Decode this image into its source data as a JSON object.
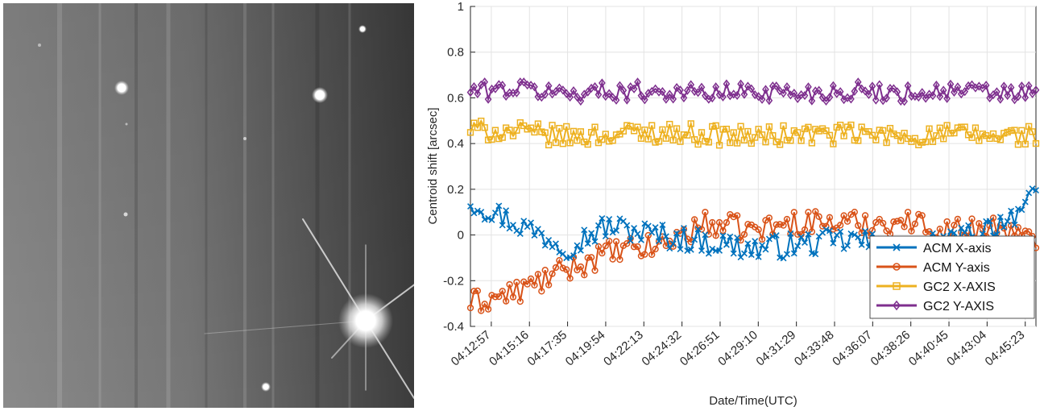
{
  "chart_data": {
    "type": "line",
    "xlabel": "Date/Time(UTC)",
    "ylabel": "Centroid shift [arcsec]",
    "ylim": [
      -0.4,
      1
    ],
    "yticks": [
      -0.4,
      -0.2,
      0,
      0.2,
      0.4,
      0.6,
      0.8,
      1
    ],
    "ytick_labels": [
      "-0.4",
      "-0.2",
      "0",
      "0.2",
      "0.4",
      "0.6",
      "0.8",
      "1"
    ],
    "xlim": [
      "04:11:41",
      "04:46:02"
    ],
    "x_tick_labels": [
      "04:12:57",
      "04:15:16",
      "04:17:35",
      "04:19:54",
      "04:22:13",
      "04:24:32",
      "04:26:51",
      "04:29:10",
      "04:31:29",
      "04:33:48",
      "04:36:07",
      "04:38:26",
      "04:40:45",
      "04:43:04",
      "04:45:23"
    ],
    "grid": true,
    "legend_position": "bottom-right",
    "colors": {
      "acm_x": "#0072BD",
      "acm_y": "#D95319",
      "gc2_x": "#EDB120",
      "gc2_y": "#7E2F8E"
    },
    "series": [
      {
        "name": "ACM X-axis",
        "marker": "x",
        "color": "#0072BD",
        "x": [
          "04:11:41",
          "04:14:30",
          "04:17:35",
          "04:20:00",
          "04:23:00",
          "04:26:00",
          "04:29:00",
          "04:32:00",
          "04:35:00",
          "04:38:00",
          "04:41:00",
          "04:44:00",
          "04:46:02"
        ],
        "values": [
          0.15,
          0.05,
          -0.05,
          0.04,
          0.0,
          -0.03,
          -0.06,
          -0.04,
          -0.02,
          -0.07,
          -0.03,
          0.06,
          0.16
        ]
      },
      {
        "name": "ACM Y-axis",
        "marker": "o",
        "color": "#D95319",
        "x": [
          "04:11:41",
          "04:14:30",
          "04:17:35",
          "04:20:00",
          "04:23:00",
          "04:26:00",
          "04:29:00",
          "04:32:00",
          "04:35:00",
          "04:38:00",
          "04:41:00",
          "04:44:00",
          "04:46:02"
        ],
        "values": [
          -0.3,
          -0.25,
          -0.15,
          -0.08,
          -0.05,
          0.05,
          0.02,
          0.06,
          0.05,
          0.06,
          0.02,
          0.04,
          -0.05
        ]
      },
      {
        "name": "GC2 X-AXIS",
        "marker": "s",
        "color": "#EDB120",
        "x": [
          "04:11:41",
          "04:14:30",
          "04:17:35",
          "04:20:00",
          "04:23:00",
          "04:26:00",
          "04:29:00",
          "04:32:00",
          "04:35:00",
          "04:38:00",
          "04:41:00",
          "04:44:00",
          "04:46:02"
        ],
        "values": [
          0.46,
          0.45,
          0.43,
          0.44,
          0.45,
          0.44,
          0.43,
          0.44,
          0.44,
          0.43,
          0.44,
          0.43,
          0.44
        ]
      },
      {
        "name": "GC2 Y-AXIS",
        "marker": "d",
        "color": "#7E2F8E",
        "x": [
          "04:11:41",
          "04:14:30",
          "04:17:35",
          "04:20:00",
          "04:23:00",
          "04:26:00",
          "04:29:00",
          "04:32:00",
          "04:35:00",
          "04:38:00",
          "04:41:00",
          "04:44:00",
          "04:46:02"
        ],
        "values": [
          0.63,
          0.64,
          0.62,
          0.63,
          0.63,
          0.62,
          0.63,
          0.62,
          0.63,
          0.62,
          0.63,
          0.62,
          0.62
        ]
      }
    ]
  }
}
